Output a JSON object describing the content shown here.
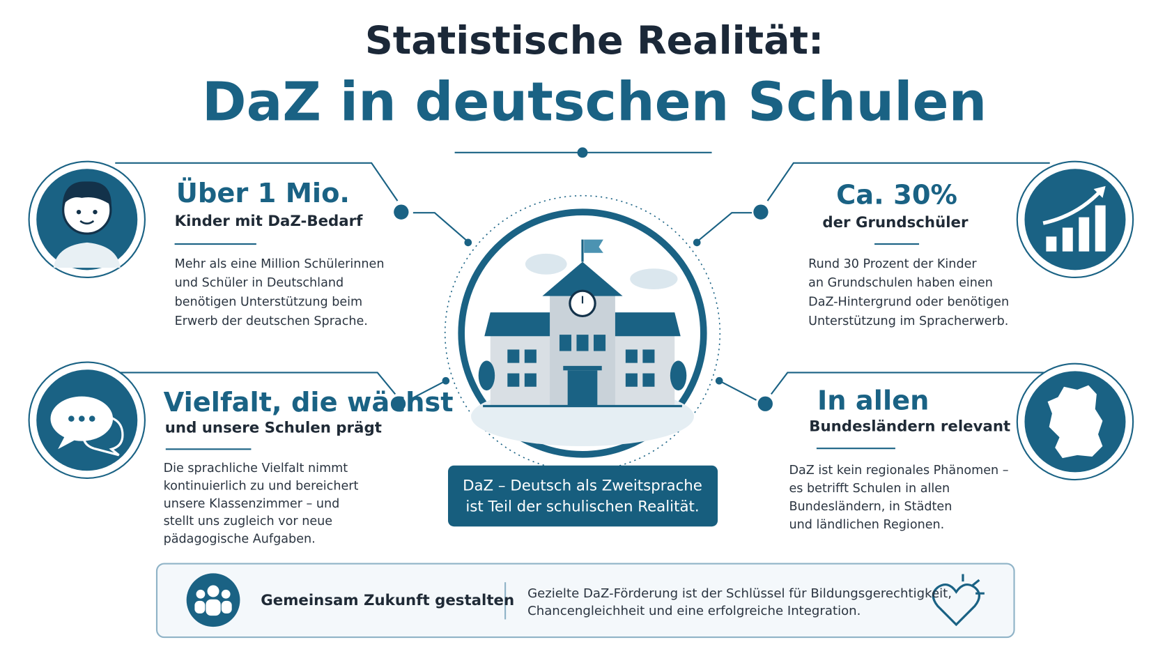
{
  "header": {
    "title_line1": "Statistische Realität:",
    "title_line2": "DaZ in deutschen Schulen"
  },
  "facts": [
    {
      "headline": "Über 1 Mio.",
      "subline": "Kinder mit DaZ-Bedarf",
      "body": [
        "Mehr als eine Million Schülerinnen",
        "und Schüler in Deutschland",
        "benötigen Unterstützung beim",
        "Erwerb der deutschen Sprache."
      ]
    },
    {
      "headline": "Ca. 30%",
      "subline": "der Grundschüler",
      "body": [
        "Rund 30 Prozent der Kinder",
        "an Grundschulen haben einen",
        "DaZ-Hintergrund oder benötigen",
        "Unterstützung im Spracherwerb."
      ]
    },
    {
      "headline": "Vielfalt, die wächst",
      "subline": "und unsere Schulen prägt",
      "body": [
        "Die sprachliche Vielfalt nimmt",
        "kontinuierlich zu und bereichert",
        "unsere Klassenzimmer – und",
        "stellt uns zugleich vor neue",
        "pädagogische Aufgaben."
      ]
    },
    {
      "headline": "In allen",
      "subline": "Bundesländern relevant",
      "body": [
        "DaZ ist kein regionales Phänomen –",
        "es betrifft Schulen in allen",
        "Bundesländern, in Städten",
        "und ländlichen Regionen."
      ]
    }
  ],
  "center": {
    "caption": [
      "DaZ – Deutsch als Zweitsprache",
      "ist Teil der schulischen Realität."
    ]
  },
  "footer": {
    "title": "Gemeinsam Zukunft gestalten",
    "text": [
      "Gezielte DaZ-Förderung ist der Schlüssel für Bildungsgerechtigkeit,",
      "Chancengleichheit und eine erfolgreiche Integration."
    ]
  }
}
